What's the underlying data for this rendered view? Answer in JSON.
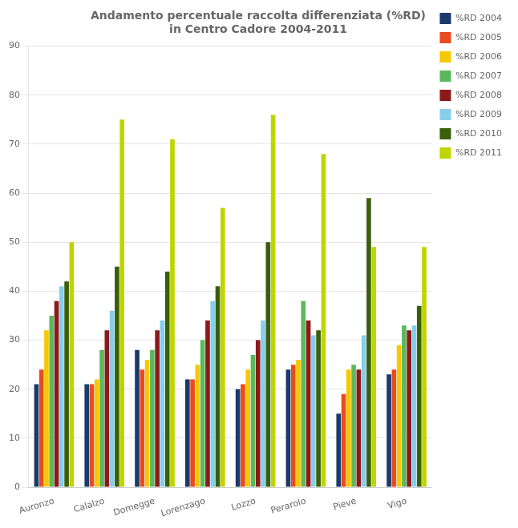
{
  "chart_data": {
    "type": "bar",
    "title": "Andamento percentuale raccolta differenziata (%RD)\nin Centro Cadore 2004-2011",
    "categories": [
      "Auronzo",
      "Calalzo",
      "Domegge",
      "Lorenzago",
      "Lozzo",
      "Perarolo",
      "Pieve",
      "Vigo"
    ],
    "series": [
      {
        "name": "%RD 2004",
        "color": "#1a3a6b",
        "values": [
          21,
          21,
          28,
          22,
          20,
          24,
          15,
          23
        ]
      },
      {
        "name": "%RD 2005",
        "color": "#e84c1e",
        "values": [
          24,
          21,
          24,
          22,
          21,
          25,
          19,
          24
        ]
      },
      {
        "name": "%RD 2006",
        "color": "#f5c800",
        "values": [
          32,
          22,
          26,
          25,
          24,
          26,
          24,
          29
        ]
      },
      {
        "name": "%RD 2007",
        "color": "#5cb85c",
        "values": [
          35,
          28,
          28,
          30,
          27,
          38,
          25,
          33
        ]
      },
      {
        "name": "%RD 2008",
        "color": "#8b1a1a",
        "values": [
          38,
          32,
          32,
          34,
          30,
          34,
          24,
          32
        ]
      },
      {
        "name": "%RD 2009",
        "color": "#87ceeb",
        "values": [
          41,
          36,
          34,
          38,
          34,
          31,
          31,
          33
        ]
      },
      {
        "name": "%RD 2010",
        "color": "#3a5f0b",
        "values": [
          42,
          45,
          44,
          41,
          50,
          32,
          59,
          37
        ]
      },
      {
        "name": "%RD 2011",
        "color": "#bfd400",
        "values": [
          50,
          75,
          71,
          57,
          76,
          68,
          49,
          49
        ]
      }
    ],
    "ylim": [
      0,
      90
    ],
    "yticks": [
      0,
      10,
      20,
      30,
      40,
      50,
      60,
      70,
      80,
      90
    ],
    "grid": true,
    "legend": "upper right"
  }
}
